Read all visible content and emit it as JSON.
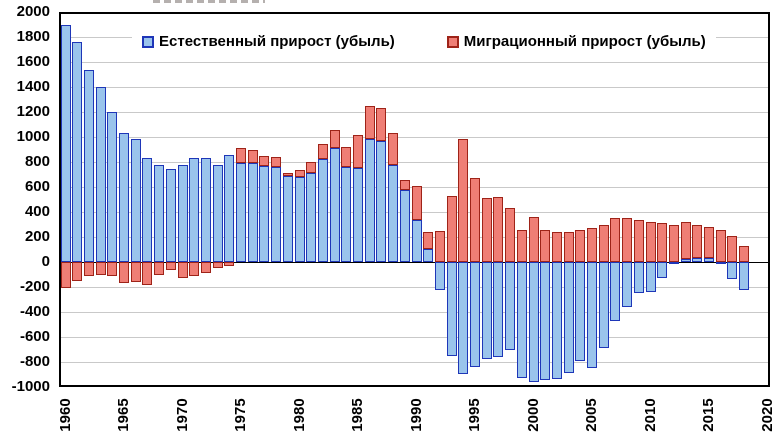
{
  "legend": {
    "natural_label": "Естественный прирост (убыль)",
    "migration_label": "Миграционный прирост (убыль)"
  },
  "colors": {
    "natural_fill": "#9ac4ec",
    "natural_border": "#1e36b8",
    "migration_fill": "#ef7e75",
    "migration_border": "#9e2318",
    "gridline": "#c9c9c9",
    "axis": "#000000",
    "background": "#ffffff"
  },
  "chart_data": {
    "type": "bar",
    "stacked": true,
    "title": "",
    "xlabel": "",
    "ylabel": "",
    "ylim": [
      -1000,
      2000
    ],
    "ytick_step": 200,
    "grid": true,
    "legend_position": "top-inside",
    "yticks": [
      2000,
      1800,
      1600,
      1400,
      1200,
      1000,
      800,
      600,
      400,
      200,
      0,
      -200,
      -400,
      -600,
      -800,
      -1000
    ],
    "xticks": [
      1960,
      1965,
      1970,
      1975,
      1980,
      1985,
      1990,
      1995,
      2000,
      2005,
      2010,
      2015,
      2020
    ],
    "categories": [
      1960,
      1961,
      1962,
      1963,
      1964,
      1965,
      1966,
      1967,
      1968,
      1969,
      1970,
      1971,
      1972,
      1973,
      1974,
      1975,
      1976,
      1977,
      1978,
      1979,
      1980,
      1981,
      1982,
      1983,
      1984,
      1985,
      1986,
      1987,
      1988,
      1989,
      1990,
      1991,
      1992,
      1993,
      1994,
      1995,
      1996,
      1997,
      1998,
      1999,
      2000,
      2001,
      2002,
      2003,
      2004,
      2005,
      2006,
      2007,
      2008,
      2009,
      2010,
      2011,
      2012,
      2013,
      2014,
      2015,
      2016,
      2017,
      2018
    ],
    "series": [
      {
        "name": "Естественный прирост (убыль)",
        "values": [
          1896,
          1762,
          1536,
          1399,
          1204,
          1032,
          983,
          834,
          776,
          741,
          773,
          831,
          833,
          780,
          857,
          796,
          794,
          769,
          762,
          688,
          677,
          712,
          824,
          915,
          759,
          750,
          988,
          968,
          779,
          577,
          333,
          104,
          -220,
          -750,
          -893,
          -840,
          -778,
          -756,
          -705,
          -930,
          -958,
          -943,
          -935,
          -889,
          -793,
          -847,
          -687,
          -470,
          -362,
          -249,
          -240,
          -129,
          -4,
          24,
          30,
          32,
          -2,
          -136,
          -225
        ]
      },
      {
        "name": "Миграционный прирост (убыль)",
        "values": [
          -210,
          -155,
          -115,
          -100,
          -115,
          -165,
          -160,
          -180,
          -105,
          -65,
          -130,
          -110,
          -90,
          -50,
          -35,
          115,
          105,
          80,
          82,
          27,
          63,
          85,
          120,
          145,
          165,
          267,
          261,
          264,
          251,
          80,
          275,
          140,
          250,
          525,
          985,
          670,
          513,
          520,
          430,
          260,
          362,
          260,
          242,
          242,
          256,
          270,
          296,
          350,
          350,
          336,
          320,
          310,
          295,
          296,
          270,
          245,
          260,
          212,
          125
        ]
      }
    ]
  }
}
